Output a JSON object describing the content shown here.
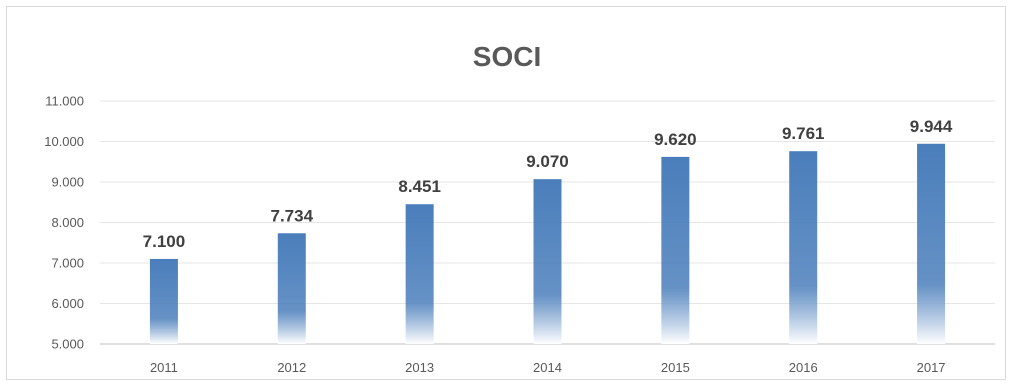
{
  "chart_data": {
    "type": "bar",
    "title": "SOCI",
    "xlabel": "",
    "ylabel": "",
    "categories": [
      "2011",
      "2012",
      "2013",
      "2014",
      "2015",
      "2016",
      "2017"
    ],
    "values": [
      7100,
      7734,
      8451,
      9070,
      9620,
      9761,
      9944
    ],
    "data_labels": [
      "7.100",
      "7.734",
      "8.451",
      "9.070",
      "9.620",
      "9.761",
      "9.944"
    ],
    "ylim": [
      5000,
      11000
    ],
    "yticks": [
      5000,
      6000,
      7000,
      8000,
      9000,
      10000,
      11000
    ],
    "ytick_labels": [
      "5.000",
      "6.000",
      "7.000",
      "8.000",
      "9.000",
      "10.000",
      "11.000"
    ],
    "grid": true,
    "legend": "none",
    "colors": {
      "bar_top": "#4a7ebb",
      "bar_bottom": "#ffffff",
      "grid": "#e6e6e6",
      "axis": "#bfbfbf",
      "text": "#595959",
      "label": "#404040"
    }
  }
}
